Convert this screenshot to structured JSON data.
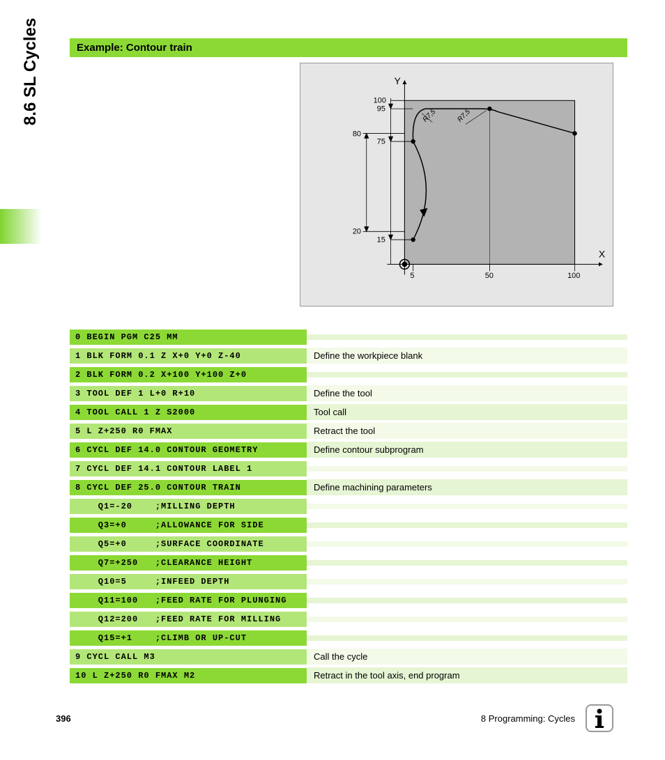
{
  "side_title": "8.6 SL Cycles",
  "example_header": "Example: Contour train",
  "diagram": {
    "axis_x_label": "X",
    "axis_y_label": "Y",
    "y_ticks_outer": [
      20,
      80
    ],
    "y_ticks_inner": [
      15,
      75,
      95,
      100
    ],
    "x_ticks": [
      5,
      50,
      100
    ],
    "radius_labels": [
      "R7,5",
      "R7,5"
    ],
    "bg_color": "#e6e6e6",
    "fill_color": "#b3b3b3",
    "stroke_color": "#000000",
    "axis_xrange": [
      0,
      100
    ],
    "axis_yrange": [
      0,
      100
    ]
  },
  "code_rows": [
    {
      "code": "0 BEGIN PGM C25 MM",
      "desc": "",
      "indent": 0
    },
    {
      "code": "1 BLK FORM 0.1 Z X+0 Y+0 Z-40",
      "desc": "Define the workpiece blank",
      "indent": 0
    },
    {
      "code": "2 BLK FORM 0.2 X+100 Y+100 Z+0",
      "desc": "",
      "indent": 0
    },
    {
      "code": "3 TOOL DEF 1 L+0 R+10",
      "desc": "Define the tool",
      "indent": 0
    },
    {
      "code": "4 TOOL CALL 1 Z S2000",
      "desc": "Tool call",
      "indent": 0
    },
    {
      "code": "5 L Z+250 R0 FMAX",
      "desc": "Retract the tool",
      "indent": 0
    },
    {
      "code": "6 CYCL DEF 14.0 CONTOUR GEOMETRY",
      "desc": "Define contour subprogram",
      "indent": 0
    },
    {
      "code": "7 CYCL DEF 14.1 CONTOUR LABEL 1",
      "desc": "",
      "indent": 0
    },
    {
      "code": "8 CYCL DEF 25.0 CONTOUR TRAIN",
      "desc": "Define machining parameters",
      "indent": 0
    },
    {
      "code": "Q1=-20    ;MILLING DEPTH",
      "desc": "",
      "indent": 1
    },
    {
      "code": "Q3=+0     ;ALLOWANCE FOR SIDE",
      "desc": "",
      "indent": 1
    },
    {
      "code": "Q5=+0     ;SURFACE COORDINATE",
      "desc": "",
      "indent": 1
    },
    {
      "code": "Q7=+250   ;CLEARANCE HEIGHT",
      "desc": "",
      "indent": 1
    },
    {
      "code": "Q10=5     ;INFEED DEPTH",
      "desc": "",
      "indent": 1
    },
    {
      "code": "Q11=100   ;FEED RATE FOR PLUNGING",
      "desc": "",
      "indent": 1
    },
    {
      "code": "Q12=200   ;FEED RATE FOR MILLING",
      "desc": "",
      "indent": 1
    },
    {
      "code": "Q15=+1    ;CLIMB OR UP-CUT",
      "desc": "",
      "indent": 1
    },
    {
      "code": "9 CYCL CALL M3",
      "desc": "Call the cycle",
      "indent": 0
    },
    {
      "code": "10 L Z+250 R0 FMAX M2",
      "desc": "Retract in the tool axis, end program",
      "indent": 0
    }
  ],
  "row_colors": {
    "dark_code": "#8cd936",
    "dark_desc": "#e6f5d4",
    "light_code": "#b3e678",
    "light_desc": "#f3fae8"
  },
  "footer": {
    "page": "396",
    "chapter": "8 Programming: Cycles"
  }
}
